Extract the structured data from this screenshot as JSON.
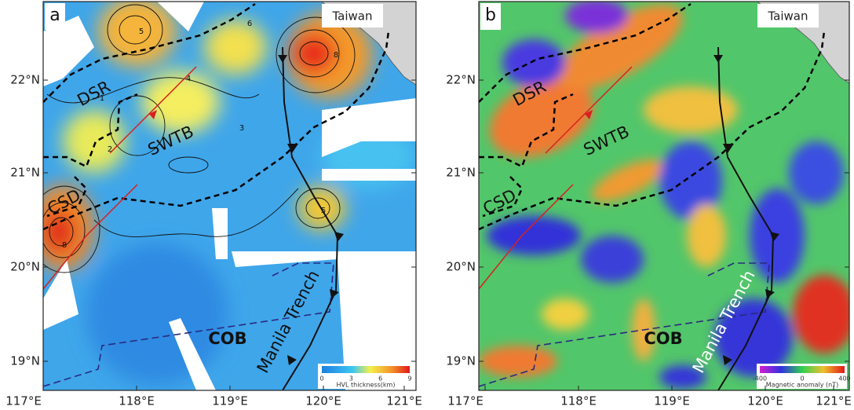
{
  "panels": [
    {
      "label": "a",
      "taiwan": "Taiwan",
      "regions": [
        "DSR",
        "SWTB",
        "CSD",
        "COB"
      ],
      "trench": "Manila Trench",
      "x_axis": [
        "117°E",
        "118°E",
        "119°E",
        "120°E",
        "121°E"
      ],
      "y_axis": [
        "22°N",
        "21°N",
        "20°N",
        "19°N"
      ],
      "colorbar": {
        "ticks": [
          "0",
          "3",
          "6",
          "9"
        ],
        "title": "HVL thickness(km)"
      },
      "contour_labels": [
        "5",
        "6",
        "8",
        "4",
        "3",
        "2",
        "1",
        "5",
        "8"
      ]
    },
    {
      "label": "b",
      "taiwan": "Taiwan",
      "regions": [
        "DSR",
        "SWTB",
        "CSD",
        "COB"
      ],
      "trench": "Manila Trench",
      "x_axis": [
        "117°E",
        "118°E",
        "119°E",
        "120°E",
        "121°E"
      ],
      "y_axis": [
        "22°N",
        "21°N",
        "20°N",
        "19°N"
      ],
      "colorbar": {
        "ticks": [
          "-400",
          "0",
          "400"
        ],
        "title": "Magnetic anomaly (nT)"
      }
    }
  ]
}
